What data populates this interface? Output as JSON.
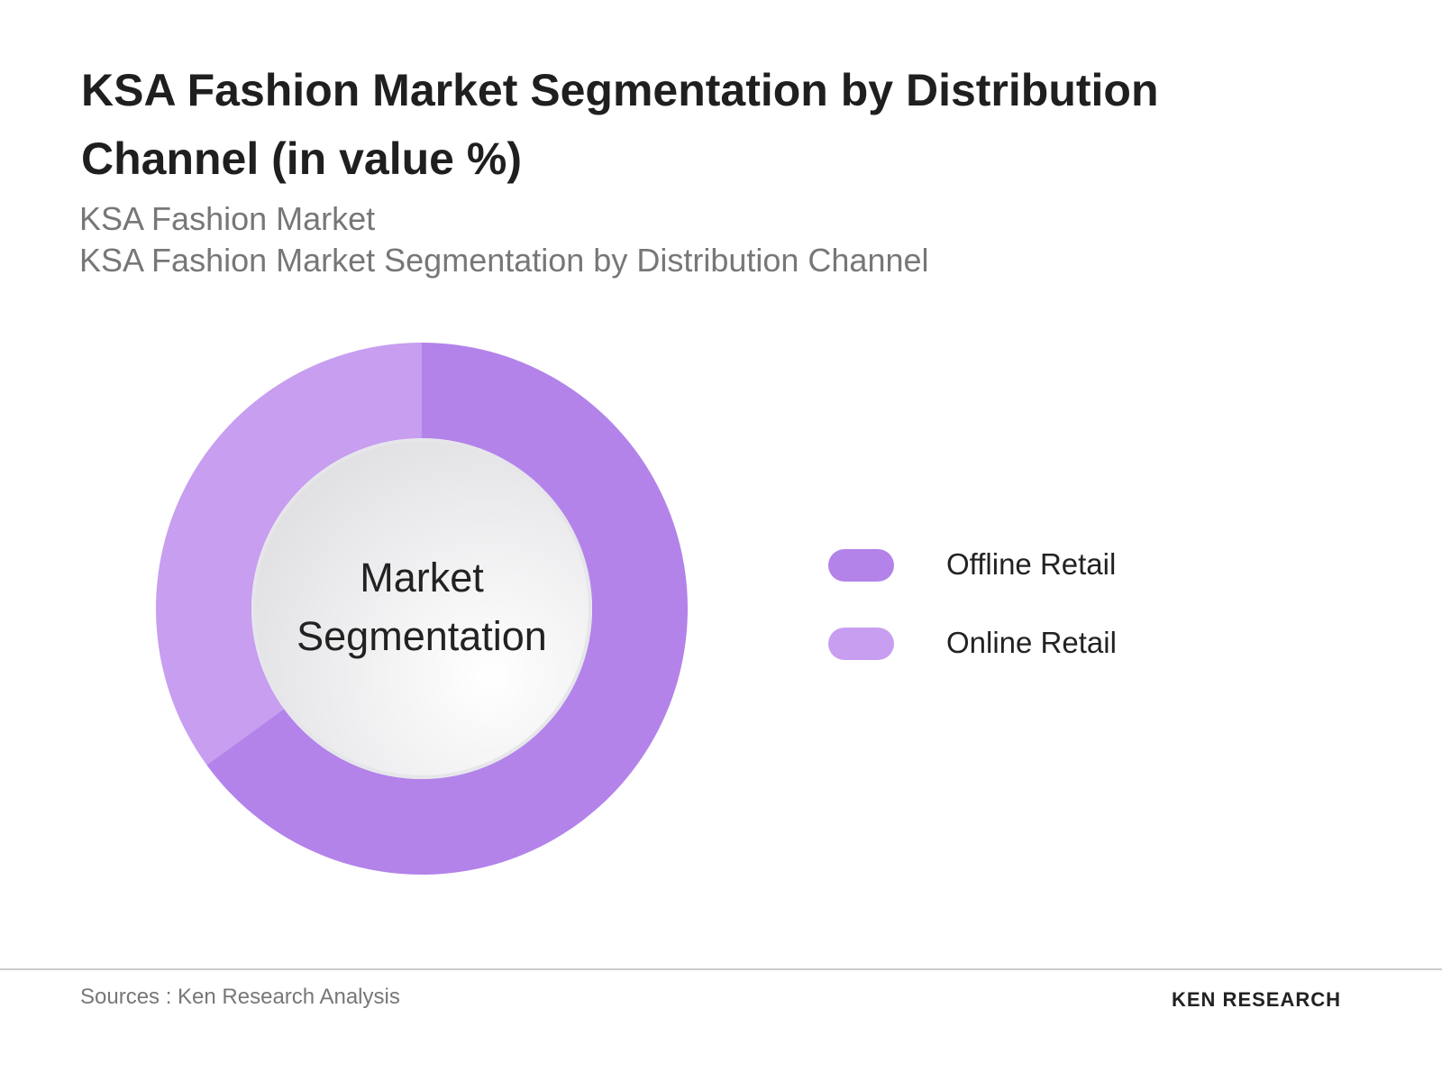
{
  "chart_data": {
    "type": "donut",
    "title": "KSA Fashion Market Segmentation by Distribution Channel (in value %)",
    "subtitle": [
      "KSA Fashion Market",
      "KSA Fashion Market Segmentation by Distribution Channel"
    ],
    "center_label": "Market Segmentation",
    "categories": [
      "Offline Retail",
      "Online Retail"
    ],
    "values": [
      65,
      35
    ],
    "colors": [
      "#b383ea",
      "#c79ef0"
    ],
    "source": "Sources : Ken Research Analysis",
    "logo": "KEN RESEARCH"
  }
}
